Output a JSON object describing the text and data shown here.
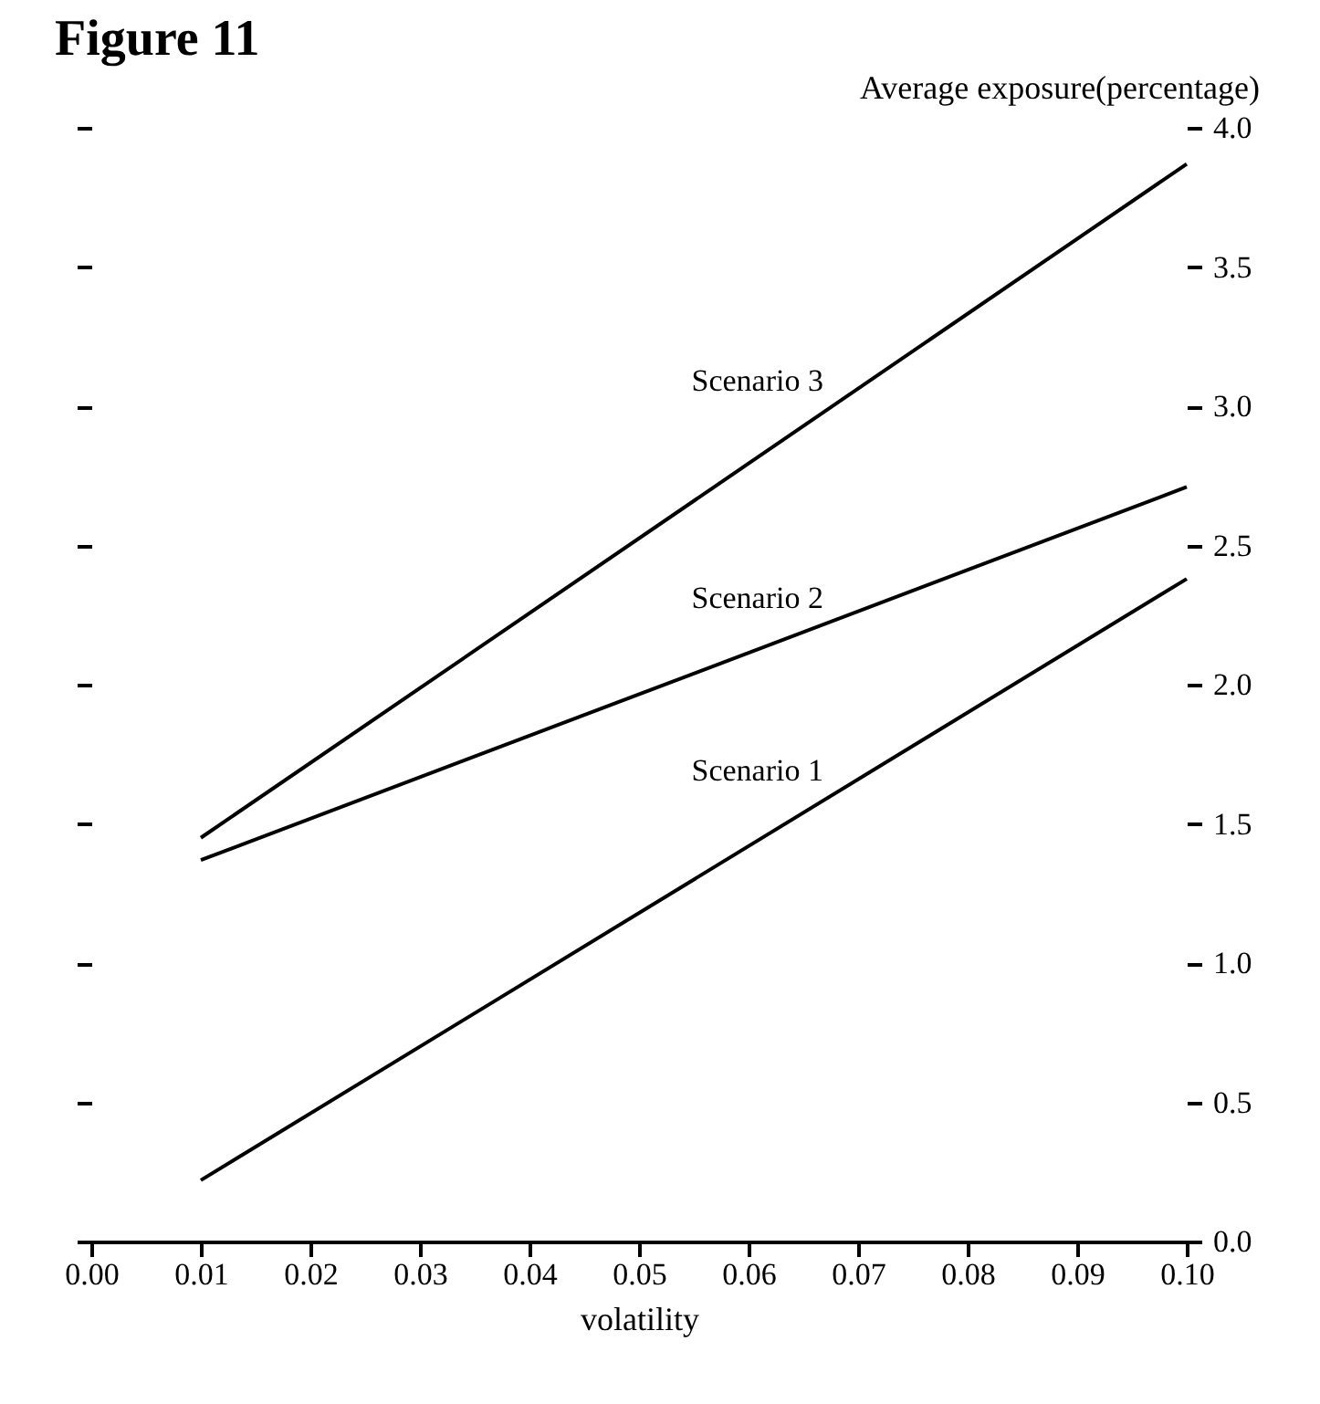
{
  "chart_data": {
    "type": "line",
    "title": "Figure 11",
    "xlabel": "volatility",
    "ylabel": "Average exposure(percentage)",
    "x": [
      0.01,
      0.1
    ],
    "series": [
      {
        "name": "Scenario 1",
        "color": "#000000",
        "values": [
          0.22,
          2.38
        ]
      },
      {
        "name": "Scenario 2",
        "color": "#000000",
        "values": [
          1.37,
          2.71
        ]
      },
      {
        "name": "Scenario 3",
        "color": "#000000",
        "values": [
          1.45,
          3.87
        ]
      }
    ],
    "xlim": [
      0,
      0.1
    ],
    "ylim": [
      0,
      4
    ],
    "xticks": [
      {
        "value": 0,
        "label": "0.00"
      },
      {
        "value": 0.01,
        "label": "0.01"
      },
      {
        "value": 0.02,
        "label": "0.02"
      },
      {
        "value": 0.03,
        "label": "0.03"
      },
      {
        "value": 0.04,
        "label": "0.04"
      },
      {
        "value": 0.05,
        "label": "0.05"
      },
      {
        "value": 0.06,
        "label": "0.06"
      },
      {
        "value": 0.07,
        "label": "0.07"
      },
      {
        "value": 0.08,
        "label": "0.08"
      },
      {
        "value": 0.09,
        "label": "0.09"
      },
      {
        "value": 0.1,
        "label": "0.10"
      }
    ],
    "yticks": [
      {
        "value": 0,
        "label": "0.0"
      },
      {
        "value": 0.5,
        "label": "0.5"
      },
      {
        "value": 1,
        "label": "1.0"
      },
      {
        "value": 1.5,
        "label": "1.5"
      },
      {
        "value": 2,
        "label": "2.0"
      },
      {
        "value": 2.5,
        "label": "2.5"
      },
      {
        "value": 3,
        "label": "3.0"
      },
      {
        "value": 3.5,
        "label": "3.5"
      },
      {
        "value": 4,
        "label": "4.0"
      }
    ],
    "grid": false,
    "legend": false,
    "marker": "none",
    "line_style": "solid"
  }
}
